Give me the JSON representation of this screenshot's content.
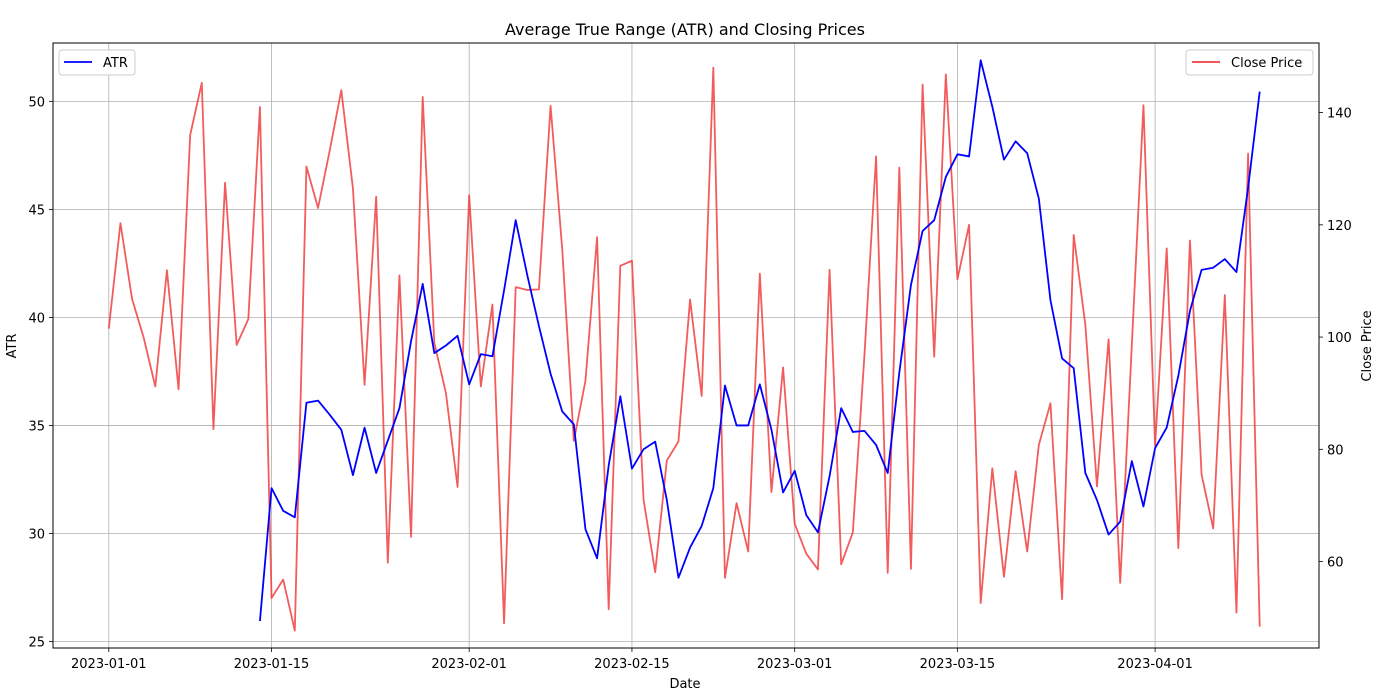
{
  "chart_data": {
    "type": "line",
    "title": "Average True Range (ATR) and Closing Prices",
    "xlabel": "Date",
    "ylabel_left": "ATR",
    "ylabel_right": "Close Price",
    "start_date": "2023-01-01",
    "x_ticks": [
      "2023-01-01",
      "2023-01-15",
      "2023-02-01",
      "2023-02-15",
      "2023-03-01",
      "2023-03-15",
      "2023-04-01"
    ],
    "y_left_ticks": [
      "25",
      "30",
      "35",
      "40",
      "45",
      "50"
    ],
    "y_right_ticks": [
      "60",
      "80",
      "100",
      "120",
      "140"
    ],
    "ylim_left": [
      24.7,
      52.7
    ],
    "ylim_right": [
      44.6,
      152.4
    ],
    "xlim_days": [
      -4.8,
      104.1
    ],
    "grid": true,
    "series": [
      {
        "name": "ATR",
        "axis": "left",
        "color": "#0000ff",
        "start_index": 13,
        "values": [
          25.95,
          32.1,
          31.05,
          30.75,
          36.05,
          36.15,
          35.5,
          34.8,
          32.7,
          34.9,
          32.8,
          34.3,
          35.8,
          38.9,
          41.55,
          38.35,
          38.7,
          39.15,
          36.9,
          38.3,
          38.2,
          41.25,
          44.5,
          41.95,
          39.6,
          37.4,
          35.65,
          35.05,
          30.2,
          28.85,
          33.15,
          36.35,
          33.0,
          33.9,
          34.25,
          31.55,
          27.95,
          29.35,
          30.35,
          32.1,
          36.85,
          35.0,
          35.0,
          36.9,
          34.8,
          31.9,
          32.9,
          30.85,
          30.05,
          32.65,
          35.8,
          34.7,
          34.75,
          34.1,
          32.8,
          37.45,
          41.5,
          44.0,
          44.5,
          46.5,
          47.55,
          47.45,
          51.9,
          49.75,
          47.3,
          48.15,
          47.6,
          45.5,
          40.8,
          38.1,
          37.65,
          32.8,
          31.55,
          29.95,
          30.55,
          33.35,
          31.25,
          33.95,
          34.9,
          37.3,
          40.3,
          42.2,
          42.3,
          42.7,
          42.1,
          46.0,
          50.45
        ]
      },
      {
        "name": "Close Price",
        "axis": "right",
        "color": "#f04040",
        "start_index": 0,
        "values": [
          101.5,
          120.3,
          106.8,
          99.9,
          91.2,
          111.9,
          90.7,
          136.0,
          145.3,
          83.6,
          127.5,
          98.6,
          103.2,
          141.0,
          53.5,
          56.8,
          47.7,
          130.4,
          123.0,
          133.2,
          144.0,
          126.5,
          91.5,
          125.0,
          59.8,
          111.0,
          64.4,
          142.8,
          99.0,
          90.0,
          73.3,
          125.3,
          91.2,
          105.8,
          49.0,
          108.9,
          108.4,
          108.5,
          141.2,
          115.8,
          81.5,
          92.2,
          117.8,
          51.5,
          112.7,
          113.6,
          71.0,
          58.1,
          78.0,
          81.4,
          106.7,
          89.5,
          148.0,
          57.1,
          70.4,
          61.8,
          111.3,
          72.4,
          94.6,
          66.7,
          61.4,
          58.6,
          112.0,
          59.5,
          65.2,
          96.8,
          132.2,
          58.0,
          130.2,
          58.7,
          145.0,
          96.5,
          146.8,
          110.3,
          120.0,
          52.6,
          76.6,
          57.3,
          76.1,
          61.8,
          80.8,
          88.2,
          53.3,
          118.2,
          102.2,
          73.4,
          99.6,
          56.2,
          98.6,
          141.3,
          80.6,
          115.8,
          62.4,
          117.2,
          75.5,
          65.9,
          107.5,
          50.9,
          132.7,
          48.4
        ]
      }
    ],
    "legend": [
      {
        "label": "ATR",
        "color": "#0000ff",
        "position": "upper-left"
      },
      {
        "label": "Close Price",
        "color": "#f04040",
        "position": "upper-right"
      }
    ]
  }
}
